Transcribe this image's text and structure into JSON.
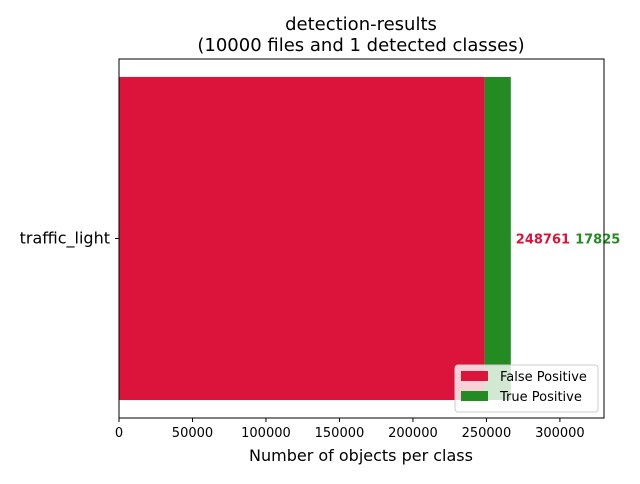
{
  "chart_data": {
    "type": "bar",
    "orientation": "horizontal",
    "stacked": true,
    "title": "detection-results",
    "subtitle": "(10000 files and 1 detected classes)",
    "xlabel": "Number of objects per class",
    "ylabel": "",
    "categories": [
      "traffic_light"
    ],
    "series": [
      {
        "name": "False Positive",
        "color": "#dc143c",
        "values": [
          248761
        ]
      },
      {
        "name": "True Positive",
        "color": "#228b22",
        "values": [
          17825
        ]
      }
    ],
    "xlim": [
      0,
      330000
    ],
    "xticks": [
      0,
      50000,
      100000,
      150000,
      200000,
      250000,
      300000
    ],
    "grid": false,
    "legend_position": "lower-right"
  }
}
